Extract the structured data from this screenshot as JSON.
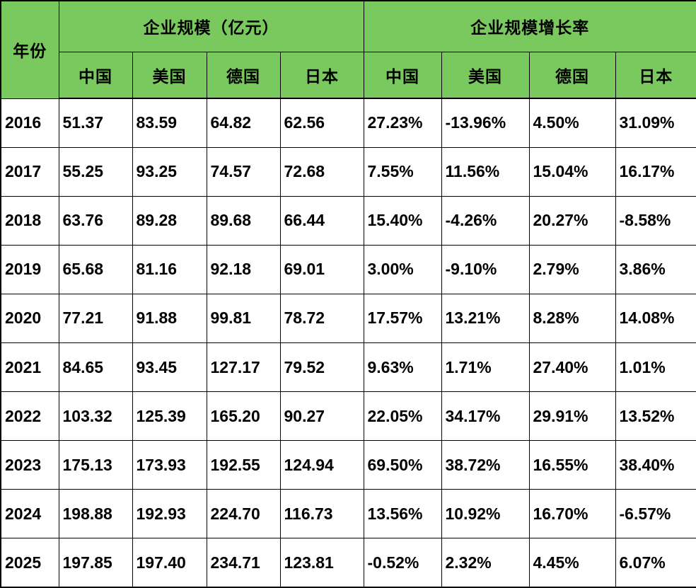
{
  "table": {
    "year_header": "年份",
    "groups": [
      {
        "label": "企业规模（亿元）",
        "columns": [
          "中国",
          "美国",
          "德国",
          "日本"
        ]
      },
      {
        "label": "企业规模增长率",
        "columns": [
          "中国",
          "美国",
          "德国",
          "日本"
        ]
      }
    ],
    "rows": [
      {
        "year": "2016",
        "scale": [
          "51.37",
          "83.59",
          "64.82",
          "62.56"
        ],
        "growth": [
          "27.23%",
          "-13.96%",
          "4.50%",
          "31.09%"
        ]
      },
      {
        "year": "2017",
        "scale": [
          "55.25",
          "93.25",
          "74.57",
          "72.68"
        ],
        "growth": [
          "7.55%",
          "11.56%",
          "15.04%",
          "16.17%"
        ]
      },
      {
        "year": "2018",
        "scale": [
          "63.76",
          "89.28",
          "89.68",
          "66.44"
        ],
        "growth": [
          "15.40%",
          "-4.26%",
          "20.27%",
          "-8.58%"
        ]
      },
      {
        "year": "2019",
        "scale": [
          "65.68",
          "81.16",
          "92.18",
          "69.01"
        ],
        "growth": [
          "3.00%",
          "-9.10%",
          "2.79%",
          "3.86%"
        ]
      },
      {
        "year": "2020",
        "scale": [
          "77.21",
          "91.88",
          "99.81",
          "78.72"
        ],
        "growth": [
          "17.57%",
          "13.21%",
          "8.28%",
          "14.08%"
        ]
      },
      {
        "year": "2021",
        "scale": [
          "84.65",
          "93.45",
          "127.17",
          "79.52"
        ],
        "growth": [
          "9.63%",
          "1.71%",
          "27.40%",
          "1.01%"
        ]
      },
      {
        "year": "2022",
        "scale": [
          "103.32",
          "125.39",
          "165.20",
          "90.27"
        ],
        "growth": [
          "22.05%",
          "34.17%",
          "29.91%",
          "13.52%"
        ]
      },
      {
        "year": "2023",
        "scale": [
          "175.13",
          "173.93",
          "192.55",
          "124.94"
        ],
        "growth": [
          "69.50%",
          "38.72%",
          "16.55%",
          "38.40%"
        ]
      },
      {
        "year": "2024",
        "scale": [
          "198.88",
          "192.93",
          "224.70",
          "116.73"
        ],
        "growth": [
          "13.56%",
          "10.92%",
          "16.70%",
          "-6.57%"
        ]
      },
      {
        "year": "2025",
        "scale": [
          "197.85",
          "197.40",
          "234.71",
          "123.81"
        ],
        "growth": [
          "-0.52%",
          "2.32%",
          "4.45%",
          "6.07%"
        ]
      }
    ],
    "colors": {
      "header_bg": "#7AC95E",
      "cell_bg": "#FFFFFF",
      "border_color": "#000000",
      "text_color": "#000000"
    }
  },
  "chart_data": {
    "type": "table",
    "categories": [
      "2016",
      "2017",
      "2018",
      "2019",
      "2020",
      "2021",
      "2022",
      "2023",
      "2024",
      "2025"
    ],
    "series": [
      {
        "name": "企业规模（亿元）-中国",
        "values": [
          51.37,
          55.25,
          63.76,
          65.68,
          77.21,
          84.65,
          103.32,
          175.13,
          198.88,
          197.85
        ]
      },
      {
        "name": "企业规模（亿元）-美国",
        "values": [
          83.59,
          93.25,
          89.28,
          81.16,
          91.88,
          93.45,
          125.39,
          173.93,
          192.93,
          197.4
        ]
      },
      {
        "name": "企业规模（亿元）-德国",
        "values": [
          64.82,
          74.57,
          89.68,
          92.18,
          99.81,
          127.17,
          165.2,
          192.55,
          224.7,
          234.71
        ]
      },
      {
        "name": "企业规模（亿元）-日本",
        "values": [
          62.56,
          72.68,
          66.44,
          69.01,
          78.72,
          79.52,
          90.27,
          124.94,
          116.73,
          123.81
        ]
      },
      {
        "name": "企业规模增长率-中国",
        "values": [
          27.23,
          7.55,
          15.4,
          3.0,
          17.57,
          9.63,
          22.05,
          69.5,
          13.56,
          -0.52
        ],
        "unit": "%"
      },
      {
        "name": "企业规模增长率-美国",
        "values": [
          -13.96,
          11.56,
          -4.26,
          -9.1,
          13.21,
          1.71,
          34.17,
          38.72,
          10.92,
          2.32
        ],
        "unit": "%"
      },
      {
        "name": "企业规模增长率-德国",
        "values": [
          4.5,
          15.04,
          20.27,
          2.79,
          8.28,
          27.4,
          29.91,
          16.55,
          16.7,
          4.45
        ],
        "unit": "%"
      },
      {
        "name": "企业规模增长率-日本",
        "values": [
          31.09,
          16.17,
          -8.58,
          3.86,
          14.08,
          1.01,
          13.52,
          38.4,
          -6.57,
          6.07
        ],
        "unit": "%"
      }
    ],
    "title": "",
    "xlabel": "年份",
    "legend_position": "none",
    "grid": true
  }
}
